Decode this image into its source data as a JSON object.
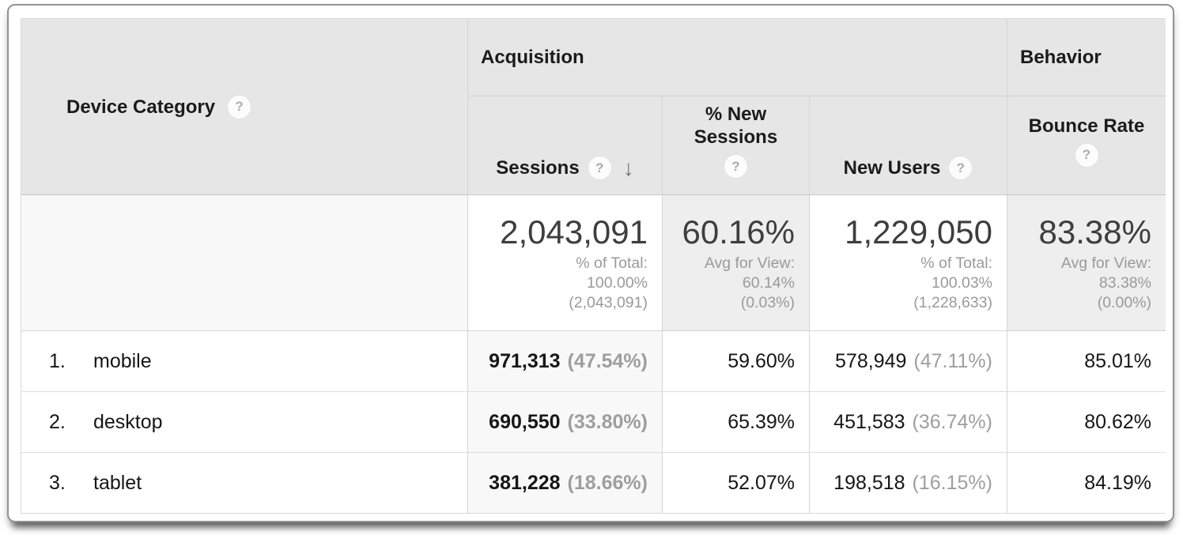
{
  "table": {
    "dimension": {
      "label": "Device Category",
      "help_icon": "?"
    },
    "groups": {
      "acquisition": "Acquisition",
      "behavior": "Behavior"
    },
    "metrics": [
      {
        "label": "Sessions",
        "help_icon": "?",
        "sort_arrow_icon": "↓",
        "sorted": "descending",
        "summary_value": "2,043,091",
        "summary_sub": [
          "% of Total:",
          "100.00%",
          "(2,043,091)"
        ]
      },
      {
        "label": "% New Sessions",
        "help_icon": "?",
        "summary_value": "60.16%",
        "summary_sub": [
          "Avg for View:",
          "60.14%",
          "(0.03%)"
        ]
      },
      {
        "label": "New Users",
        "help_icon": "?",
        "summary_value": "1,229,050",
        "summary_sub": [
          "% of Total:",
          "100.03%",
          "(1,228,633)"
        ]
      },
      {
        "label": "Bounce Rate",
        "help_icon": "?",
        "summary_value": "83.38%",
        "summary_sub": [
          "Avg for View:",
          "83.38%",
          "(0.00%)"
        ]
      }
    ],
    "rows": [
      {
        "rank": "1.",
        "device": "mobile",
        "sessions": "971,313",
        "sessions_share": "(47.54%)",
        "pct_new_sessions": "59.60%",
        "new_users": "578,949",
        "new_users_share": "(47.11%)",
        "bounce_rate": "85.01%"
      },
      {
        "rank": "2.",
        "device": "desktop",
        "sessions": "690,550",
        "sessions_share": "(33.80%)",
        "pct_new_sessions": "65.39%",
        "new_users": "451,583",
        "new_users_share": "(36.74%)",
        "bounce_rate": "80.62%"
      },
      {
        "rank": "3.",
        "device": "tablet",
        "sessions": "381,228",
        "sessions_share": "(18.66%)",
        "pct_new_sessions": "52.07%",
        "new_users": "198,518",
        "new_users_share": "(16.15%)",
        "bounce_rate": "84.19%"
      }
    ]
  },
  "colors": {
    "header_bg": "#e6e6e6",
    "sorted_column_bg": "#f8f8f8",
    "summary_avg_cell_bg": "#eeeeee",
    "summary_dimension_cell_bg": "#f8f8f8",
    "cell_border": "#d5d5d5",
    "muted_text": "#9a9a9a",
    "summary_value_text": "#3e3e3e"
  }
}
